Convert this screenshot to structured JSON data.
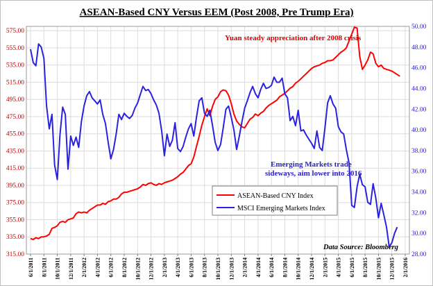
{
  "chart_data": {
    "type": "line",
    "title": "ASEAN-Based CNY Versus EEM (Post 2008, Pre Trump Era)",
    "y_left": {
      "ticks": [
        "315.00",
        "335.00",
        "355.00",
        "375.00",
        "395.00",
        "415.00",
        "435.00",
        "455.00",
        "475.00",
        "495.00",
        "515.00",
        "535.00",
        "555.00",
        "575.00"
      ],
      "ylim": [
        315,
        580
      ]
    },
    "y_right": {
      "ticks": [
        "28.00",
        "30.00",
        "32.00",
        "34.00",
        "36.00",
        "38.00",
        "40.00",
        "42.00",
        "44.00",
        "46.00",
        "48.00",
        "50.00"
      ],
      "ylim": [
        28,
        50
      ]
    },
    "x_ticks": [
      "6/1/2011",
      "8/1/2011",
      "10/1/2011",
      "12/1/2011",
      "2/1/2012",
      "4/1/2012",
      "6/1/2012",
      "8/1/2012",
      "10/1/2012",
      "12/1/2012",
      "2/1/2013",
      "4/1/2013",
      "6/1/2013",
      "8/1/2013",
      "10/1/2013",
      "12/1/2013",
      "2/1/2014",
      "4/1/2014",
      "6/1/2014",
      "8/1/2014",
      "10/1/2014",
      "12/1/2014",
      "2/1/2015",
      "4/1/2015",
      "6/1/2015",
      "8/1/2015",
      "10/1/2015",
      "12/1/2015",
      "2/1/2016"
    ],
    "grid": true,
    "legend_position": "center-right",
    "series": [
      {
        "name": "ASEAN-Based CNY Index",
        "axis": "left",
        "color": "#ff0000",
        "points": [
          [
            0,
            333
          ],
          [
            0.2,
            332
          ],
          [
            0.4,
            334
          ],
          [
            0.6,
            333
          ],
          [
            0.8,
            335
          ],
          [
            1,
            335
          ],
          [
            1.2,
            336
          ],
          [
            1.4,
            338
          ],
          [
            1.6,
            345
          ],
          [
            1.8,
            346
          ],
          [
            2,
            348
          ],
          [
            2.2,
            352
          ],
          [
            2.4,
            353
          ],
          [
            2.6,
            352
          ],
          [
            2.8,
            355
          ],
          [
            3,
            356
          ],
          [
            3.2,
            357
          ],
          [
            3.4,
            362
          ],
          [
            3.6,
            364
          ],
          [
            3.8,
            363
          ],
          [
            4,
            364
          ],
          [
            4.2,
            363
          ],
          [
            4.4,
            366
          ],
          [
            4.6,
            368
          ],
          [
            4.8,
            370
          ],
          [
            5,
            372
          ],
          [
            5.2,
            372
          ],
          [
            5.4,
            374
          ],
          [
            5.6,
            373
          ],
          [
            5.8,
            376
          ],
          [
            6,
            377
          ],
          [
            6.2,
            379
          ],
          [
            6.4,
            379
          ],
          [
            6.6,
            381
          ],
          [
            6.8,
            385
          ],
          [
            7,
            387
          ],
          [
            7.2,
            387
          ],
          [
            7.4,
            388
          ],
          [
            7.6,
            389
          ],
          [
            7.8,
            390
          ],
          [
            8,
            391
          ],
          [
            8.2,
            393
          ],
          [
            8.4,
            396
          ],
          [
            8.6,
            395
          ],
          [
            8.8,
            397
          ],
          [
            9,
            398
          ],
          [
            9.2,
            396
          ],
          [
            9.4,
            395
          ],
          [
            9.6,
            397
          ],
          [
            9.8,
            396
          ],
          [
            10,
            398
          ],
          [
            10.2,
            399
          ],
          [
            10.4,
            400
          ],
          [
            10.6,
            401
          ],
          [
            10.8,
            403
          ],
          [
            11,
            405
          ],
          [
            11.2,
            408
          ],
          [
            11.4,
            410
          ],
          [
            11.6,
            414
          ],
          [
            11.8,
            418
          ],
          [
            12,
            420
          ],
          [
            12.2,
            428
          ],
          [
            12.4,
            440
          ],
          [
            12.6,
            452
          ],
          [
            12.8,
            465
          ],
          [
            13,
            475
          ],
          [
            13.2,
            484
          ],
          [
            13.4,
            476
          ],
          [
            13.6,
            487
          ],
          [
            13.8,
            495
          ],
          [
            14,
            498
          ],
          [
            14.2,
            504
          ],
          [
            14.4,
            506
          ],
          [
            14.6,
            505
          ],
          [
            14.8,
            500
          ],
          [
            15,
            490
          ],
          [
            15.2,
            478
          ],
          [
            15.4,
            470
          ],
          [
            15.6,
            466
          ],
          [
            15.8,
            463
          ],
          [
            16,
            462
          ],
          [
            16.2,
            467
          ],
          [
            16.4,
            472
          ],
          [
            16.6,
            474
          ],
          [
            16.8,
            478
          ],
          [
            17,
            476
          ],
          [
            17.2,
            479
          ],
          [
            17.4,
            481
          ],
          [
            17.6,
            485
          ],
          [
            17.8,
            488
          ],
          [
            18,
            490
          ],
          [
            18.2,
            492
          ],
          [
            18.4,
            494
          ],
          [
            18.6,
            498
          ],
          [
            18.8,
            500
          ],
          [
            19,
            502
          ],
          [
            19.2,
            505
          ],
          [
            19.4,
            508
          ],
          [
            19.6,
            510
          ],
          [
            19.8,
            514
          ],
          [
            20,
            516
          ],
          [
            20.2,
            519
          ],
          [
            20.4,
            522
          ],
          [
            20.6,
            525
          ],
          [
            20.8,
            528
          ],
          [
            21,
            531
          ],
          [
            21.2,
            533
          ],
          [
            21.4,
            534
          ],
          [
            21.6,
            535
          ],
          [
            21.8,
            537
          ],
          [
            22,
            538
          ],
          [
            22.2,
            540
          ],
          [
            22.4,
            540
          ],
          [
            22.6,
            541
          ],
          [
            22.8,
            544
          ],
          [
            23,
            547
          ],
          [
            23.2,
            550
          ],
          [
            23.4,
            552
          ],
          [
            23.6,
            555
          ],
          [
            23.8,
            563
          ],
          [
            24,
            571
          ],
          [
            24.2,
            579
          ],
          [
            24.4,
            578
          ],
          [
            24.6,
            545
          ],
          [
            24.8,
            530
          ],
          [
            25,
            535
          ],
          [
            25.2,
            541
          ],
          [
            25.4,
            550
          ],
          [
            25.6,
            548
          ],
          [
            25.8,
            537
          ],
          [
            26,
            533
          ],
          [
            26.2,
            535
          ],
          [
            26.4,
            531
          ],
          [
            26.6,
            530
          ],
          [
            26.8,
            529
          ],
          [
            27,
            528
          ],
          [
            27.2,
            526
          ],
          [
            27.4,
            524
          ],
          [
            27.6,
            522
          ]
        ]
      },
      {
        "name": "MSCI Emerging Markets Index",
        "axis": "right",
        "color": "#2a21e0",
        "points": [
          [
            0,
            47.8
          ],
          [
            0.2,
            46.5
          ],
          [
            0.4,
            46.2
          ],
          [
            0.6,
            48.3
          ],
          [
            0.8,
            48.0
          ],
          [
            1,
            46.9
          ],
          [
            1.2,
            42.3
          ],
          [
            1.4,
            40.1
          ],
          [
            1.6,
            41.5
          ],
          [
            1.8,
            36.6
          ],
          [
            2,
            35.2
          ],
          [
            2.2,
            39.5
          ],
          [
            2.4,
            42.2
          ],
          [
            2.6,
            41.5
          ],
          [
            2.8,
            36.2
          ],
          [
            3,
            39.4
          ],
          [
            3.2,
            38.5
          ],
          [
            3.4,
            39.3
          ],
          [
            3.6,
            38.3
          ],
          [
            3.8,
            40.8
          ],
          [
            4,
            42.3
          ],
          [
            4.2,
            43.3
          ],
          [
            4.4,
            43.7
          ],
          [
            4.6,
            43.1
          ],
          [
            4.8,
            42.8
          ],
          [
            5,
            42.5
          ],
          [
            5.2,
            42.9
          ],
          [
            5.4,
            41.5
          ],
          [
            5.6,
            40.6
          ],
          [
            5.8,
            38.8
          ],
          [
            6,
            37.2
          ],
          [
            6.2,
            38.1
          ],
          [
            6.4,
            39.6
          ],
          [
            6.6,
            41.5
          ],
          [
            6.8,
            41.0
          ],
          [
            7,
            41.6
          ],
          [
            7.2,
            41.3
          ],
          [
            7.4,
            41.1
          ],
          [
            7.6,
            41.4
          ],
          [
            7.8,
            42.1
          ],
          [
            8,
            42.6
          ],
          [
            8.2,
            43.4
          ],
          [
            8.4,
            44.2
          ],
          [
            8.6,
            43.8
          ],
          [
            8.8,
            43.9
          ],
          [
            9,
            43.5
          ],
          [
            9.2,
            42.9
          ],
          [
            9.4,
            42.4
          ],
          [
            9.6,
            41.6
          ],
          [
            9.8,
            39.9
          ],
          [
            10,
            37.5
          ],
          [
            10.2,
            39.6
          ],
          [
            10.4,
            38.4
          ],
          [
            10.6,
            39.0
          ],
          [
            10.8,
            40.7
          ],
          [
            11,
            38.2
          ],
          [
            11.2,
            37.9
          ],
          [
            11.4,
            38.4
          ],
          [
            11.6,
            39.3
          ],
          [
            11.8,
            40.1
          ],
          [
            12,
            40.6
          ],
          [
            12.2,
            39.4
          ],
          [
            12.4,
            41.2
          ],
          [
            12.6,
            42.8
          ],
          [
            12.8,
            43.1
          ],
          [
            13,
            41.6
          ],
          [
            13.2,
            41.3
          ],
          [
            13.4,
            41.9
          ],
          [
            13.6,
            40.4
          ],
          [
            13.8,
            38.8
          ],
          [
            14,
            38.0
          ],
          [
            14.2,
            38.6
          ],
          [
            14.4,
            40.2
          ],
          [
            14.6,
            42.0
          ],
          [
            14.8,
            42.3
          ],
          [
            15,
            41.2
          ],
          [
            15.2,
            40.0
          ],
          [
            15.4,
            38.1
          ],
          [
            15.6,
            39.4
          ],
          [
            15.8,
            40.8
          ],
          [
            16,
            42.1
          ],
          [
            16.2,
            42.8
          ],
          [
            16.4,
            43.6
          ],
          [
            16.6,
            44.2
          ],
          [
            16.8,
            43.5
          ],
          [
            17,
            43.1
          ],
          [
            17.2,
            43.9
          ],
          [
            17.4,
            44.5
          ],
          [
            17.6,
            44.0
          ],
          [
            17.8,
            44.1
          ],
          [
            18,
            44.3
          ],
          [
            18.2,
            45.1
          ],
          [
            18.4,
            44.6
          ],
          [
            18.6,
            44.6
          ],
          [
            18.8,
            45.0
          ],
          [
            19,
            43.5
          ],
          [
            19.2,
            43.1
          ],
          [
            19.4,
            40.9
          ],
          [
            19.6,
            41.3
          ],
          [
            19.8,
            40.4
          ],
          [
            20,
            41.9
          ],
          [
            20.2,
            39.9
          ],
          [
            20.4,
            40.0
          ],
          [
            20.6,
            39.5
          ],
          [
            20.8,
            39.1
          ],
          [
            21,
            38.7
          ],
          [
            21.2,
            38.2
          ],
          [
            21.4,
            39.9
          ],
          [
            21.6,
            38.3
          ],
          [
            21.8,
            38.0
          ],
          [
            22,
            40.2
          ],
          [
            22.2,
            42.6
          ],
          [
            22.4,
            43.3
          ],
          [
            22.6,
            42.5
          ],
          [
            22.8,
            42.1
          ],
          [
            23,
            40.3
          ],
          [
            23.2,
            39.8
          ],
          [
            23.4,
            39.6
          ],
          [
            23.6,
            38.1
          ],
          [
            23.8,
            36.8
          ],
          [
            24,
            32.7
          ],
          [
            24.2,
            32.5
          ],
          [
            24.4,
            34.5
          ],
          [
            24.6,
            35.7
          ],
          [
            24.8,
            34.7
          ],
          [
            25,
            34.5
          ],
          [
            25.2,
            33.0
          ],
          [
            25.4,
            32.8
          ],
          [
            25.6,
            34.8
          ],
          [
            25.8,
            33.4
          ],
          [
            26,
            31.5
          ],
          [
            26.2,
            32.9
          ],
          [
            26.4,
            31.8
          ],
          [
            26.6,
            30.6
          ],
          [
            26.8,
            28.7
          ],
          [
            27,
            29.1
          ],
          [
            27.2,
            30.0
          ],
          [
            27.4,
            30.6
          ]
        ]
      }
    ],
    "annotations": {
      "red": "Yuan steady appreciation after 2008 crisis",
      "blue_line1": "Emerging Markets trade",
      "blue_line2": "sideways, aim lower into 2016"
    },
    "source": "Data Source: Bloomberg"
  },
  "colors": {
    "left_axis": "#c00000",
    "right_axis": "#2a21c8",
    "grid": "#dcdcdc"
  }
}
